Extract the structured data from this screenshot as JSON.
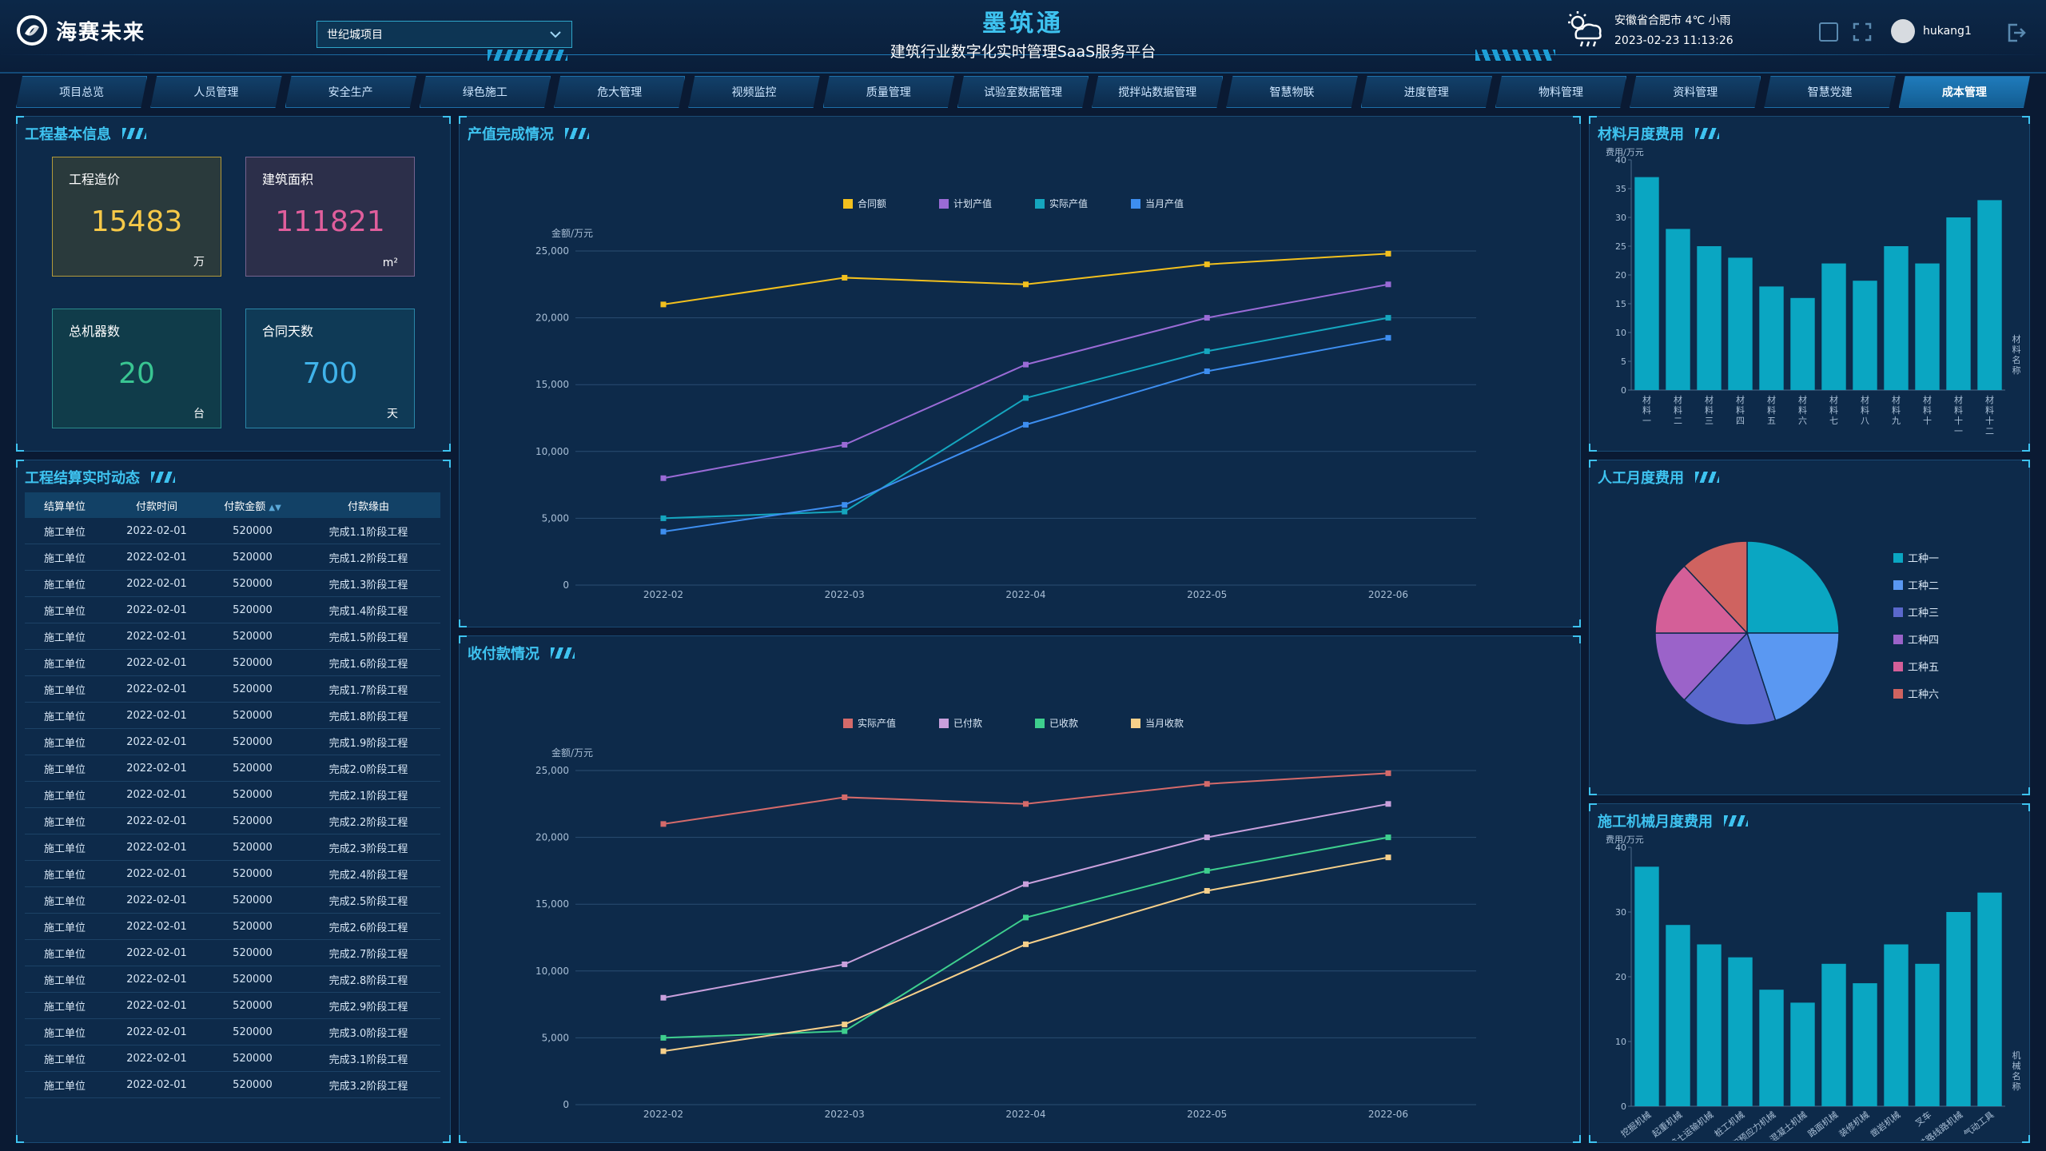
{
  "header": {
    "logo_text": "海赛未来",
    "project_select": "世纪城项目",
    "app_title": "墨筑通",
    "app_subtitle": "建筑行业数字化实时管理SaaS服务平台",
    "weather_location": "安徽省合肥市 4℃ 小雨",
    "datetime": "2023-02-23 11:13:26",
    "username": "hukang1"
  },
  "nav": {
    "tabs": [
      "项目总览",
      "人员管理",
      "安全生产",
      "绿色施工",
      "危大管理",
      "视频监控",
      "质量管理",
      "试验室数据管理",
      "搅拌站数据管理",
      "智慧物联",
      "进度管理",
      "物料管理",
      "资料管理",
      "智慧党建",
      "成本管理"
    ],
    "active": "成本管理"
  },
  "basic_info": {
    "title": "工程基本信息",
    "cards": [
      {
        "label": "工程造价",
        "value": "15483",
        "unit": "万",
        "color": "#f7c948"
      },
      {
        "label": "建筑面积",
        "value": "111821",
        "unit": "m²",
        "color": "#e05e9c"
      },
      {
        "label": "总机器数",
        "value": "20",
        "unit": "台",
        "color": "#39c592"
      },
      {
        "label": "合同天数",
        "value": "700",
        "unit": "天",
        "color": "#40b3ea"
      }
    ]
  },
  "settlement": {
    "title": "工程结算实时动态",
    "columns": [
      "结算单位",
      "付款时间",
      "付款金额",
      "付款缘由"
    ],
    "rows": [
      [
        "施工单位",
        "2022-02-01",
        "520000",
        "完成1.1阶段工程"
      ],
      [
        "施工单位",
        "2022-02-01",
        "520000",
        "完成1.2阶段工程"
      ],
      [
        "施工单位",
        "2022-02-01",
        "520000",
        "完成1.3阶段工程"
      ],
      [
        "施工单位",
        "2022-02-01",
        "520000",
        "完成1.4阶段工程"
      ],
      [
        "施工单位",
        "2022-02-01",
        "520000",
        "完成1.5阶段工程"
      ],
      [
        "施工单位",
        "2022-02-01",
        "520000",
        "完成1.6阶段工程"
      ],
      [
        "施工单位",
        "2022-02-01",
        "520000",
        "完成1.7阶段工程"
      ],
      [
        "施工单位",
        "2022-02-01",
        "520000",
        "完成1.8阶段工程"
      ],
      [
        "施工单位",
        "2022-02-01",
        "520000",
        "完成1.9阶段工程"
      ],
      [
        "施工单位",
        "2022-02-01",
        "520000",
        "完成2.0阶段工程"
      ],
      [
        "施工单位",
        "2022-02-01",
        "520000",
        "完成2.1阶段工程"
      ],
      [
        "施工单位",
        "2022-02-01",
        "520000",
        "完成2.2阶段工程"
      ],
      [
        "施工单位",
        "2022-02-01",
        "520000",
        "完成2.3阶段工程"
      ],
      [
        "施工单位",
        "2022-02-01",
        "520000",
        "完成2.4阶段工程"
      ],
      [
        "施工单位",
        "2022-02-01",
        "520000",
        "完成2.5阶段工程"
      ],
      [
        "施工单位",
        "2022-02-01",
        "520000",
        "完成2.6阶段工程"
      ],
      [
        "施工单位",
        "2022-02-01",
        "520000",
        "完成2.7阶段工程"
      ],
      [
        "施工单位",
        "2022-02-01",
        "520000",
        "完成2.8阶段工程"
      ],
      [
        "施工单位",
        "2022-02-01",
        "520000",
        "完成2.9阶段工程"
      ],
      [
        "施工单位",
        "2022-02-01",
        "520000",
        "完成3.0阶段工程"
      ],
      [
        "施工单位",
        "2022-02-01",
        "520000",
        "完成3.1阶段工程"
      ],
      [
        "施工单位",
        "2022-02-01",
        "520000",
        "完成3.2阶段工程"
      ]
    ]
  },
  "panels": {
    "output_title": "产值完成情况",
    "payment_title": "收付款情况",
    "material_title": "材料月度费用",
    "labor_title": "人工月度费用",
    "machine_title": "施工机械月度费用"
  },
  "chart_data": [
    {
      "id": "output",
      "type": "line",
      "ylabel": "金额/万元",
      "x": [
        "2022-02",
        "2022-03",
        "2022-04",
        "2022-05",
        "2022-06"
      ],
      "ylim": [
        0,
        25000
      ],
      "yticks": [
        0,
        5000,
        10000,
        15000,
        20000,
        25000
      ],
      "ytick_labels": [
        "0",
        "5,000",
        "10,000",
        "15,000",
        "20,000",
        "25,000"
      ],
      "legend": "top-center",
      "grid": true,
      "series": [
        {
          "name": "合同额",
          "color": "#f2c01e",
          "values": [
            21000,
            23000,
            22500,
            24000,
            24800
          ]
        },
        {
          "name": "计划产值",
          "color": "#9a6bd6",
          "values": [
            8000,
            10500,
            16500,
            20000,
            22500
          ]
        },
        {
          "name": "实际产值",
          "color": "#15a6bf",
          "values": [
            5000,
            5500,
            14000,
            17500,
            20000
          ]
        },
        {
          "name": "当月产值",
          "color": "#3d8ef0",
          "values": [
            4000,
            6000,
            12000,
            16000,
            18500
          ]
        }
      ]
    },
    {
      "id": "payment",
      "type": "line",
      "ylabel": "金额/万元",
      "x": [
        "2022-02",
        "2022-03",
        "2022-04",
        "2022-05",
        "2022-06"
      ],
      "ylim": [
        0,
        25000
      ],
      "yticks": [
        0,
        5000,
        10000,
        15000,
        20000,
        25000
      ],
      "ytick_labels": [
        "0",
        "5,000",
        "10,000",
        "15,000",
        "20,000",
        "25,000"
      ],
      "legend": "top-center",
      "grid": true,
      "series": [
        {
          "name": "实际产值",
          "color": "#d46a6a",
          "values": [
            21000,
            23000,
            22500,
            24000,
            24800
          ]
        },
        {
          "name": "已付款",
          "color": "#c9a0dc",
          "values": [
            8000,
            10500,
            16500,
            20000,
            22500
          ]
        },
        {
          "name": "已收款",
          "color": "#3ecf8e",
          "values": [
            5000,
            5500,
            14000,
            17500,
            20000
          ]
        },
        {
          "name": "当月收款",
          "color": "#f7d08a",
          "values": [
            4000,
            6000,
            12000,
            16000,
            18500
          ]
        }
      ]
    },
    {
      "id": "material",
      "type": "bar",
      "ylabel": "费用/万元",
      "xlabel": "材料名称",
      "categories": [
        "材料一",
        "材料二",
        "材料三",
        "材料四",
        "材料五",
        "材料六",
        "材料七",
        "材料八",
        "材料九",
        "材料十",
        "材料十一",
        "材料十二"
      ],
      "values": [
        37,
        28,
        25,
        23,
        18,
        16,
        22,
        19,
        25,
        22,
        30,
        33
      ],
      "ylim": [
        0,
        40
      ],
      "yticks": [
        0,
        5,
        10,
        15,
        20,
        25,
        30,
        35,
        40
      ],
      "color": "#0aa6c2"
    },
    {
      "id": "labor",
      "type": "pie",
      "legend": "right",
      "labels": [
        "工种一",
        "工种二",
        "工种三",
        "工种四",
        "工种五",
        "工种六"
      ],
      "values": [
        25,
        20,
        17,
        13,
        13,
        12
      ],
      "colors": [
        "#0aa6c2",
        "#5a98f2",
        "#5a68cc",
        "#9b63c9",
        "#d45f98",
        "#cf6360"
      ]
    },
    {
      "id": "machine",
      "type": "bar",
      "ylabel": "费用/万元",
      "xlabel": "机械名称",
      "categories": [
        "挖掘机械",
        "起重机械",
        "铲土运输机械",
        "桩工机械",
        "钢筋和预应力机械",
        "混凝土机械",
        "路面机械",
        "装修机械",
        "凿岩机械",
        "叉车",
        "铁路线路机械",
        "气动工具"
      ],
      "values": [
        37,
        28,
        25,
        23,
        18,
        16,
        22,
        19,
        25,
        22,
        30,
        33
      ],
      "ylim": [
        0,
        40
      ],
      "yticks": [
        0,
        10,
        20,
        30,
        40
      ],
      "color": "#0aa6c2"
    }
  ]
}
